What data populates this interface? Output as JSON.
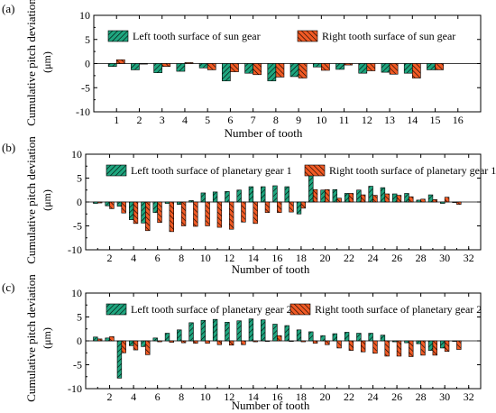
{
  "colors": {
    "left": "#1fa67f",
    "right": "#f15a24",
    "ink": "#000000"
  },
  "chart_data": [
    {
      "type": "bar",
      "panel_label": "(a)",
      "ylabel": "Cumulative pitch deviation",
      "yunit": "(μm)",
      "xlabel": "Number of tooth",
      "ylim": [
        -10,
        10
      ],
      "yticks": [
        10,
        5,
        0,
        -5,
        -10
      ],
      "xtick_labels": [
        "1",
        "2",
        "3",
        "4",
        "5",
        "6",
        "7",
        "8",
        "9",
        "10",
        "11",
        "12",
        "13",
        "14",
        "15",
        "16"
      ],
      "categories": [
        1,
        2,
        3,
        4,
        5,
        6,
        7,
        8,
        9,
        10,
        11,
        12,
        13,
        14,
        15
      ],
      "legend": "top",
      "series": [
        {
          "name": "Left tooth surface of sun gear",
          "values": [
            -0.6,
            -1.3,
            -1.9,
            -1.6,
            -0.9,
            -3.6,
            -2.0,
            -3.6,
            -2.7,
            -0.7,
            -1.2,
            -2.0,
            -1.8,
            -2.0,
            -1.3
          ]
        },
        {
          "name": "Right tooth surface of sun gear",
          "values": [
            0.8,
            0.0,
            -0.6,
            0.2,
            -1.3,
            -1.7,
            -2.3,
            -2.8,
            -3.0,
            -1.4,
            -0.3,
            -1.5,
            -2.2,
            -3.0,
            -1.3
          ]
        }
      ]
    },
    {
      "type": "bar",
      "panel_label": "(b)",
      "ylabel": "Cumulative pitch deviation",
      "yunit": "(μm)",
      "xlabel": "Number of tooth",
      "ylim": [
        -10,
        10
      ],
      "yticks": [
        10,
        5,
        0,
        -5,
        -10
      ],
      "xtick_labels": [
        "2",
        "4",
        "6",
        "8",
        "10",
        "12",
        "14",
        "16",
        "18",
        "20",
        "22",
        "24",
        "26",
        "28",
        "30",
        "32"
      ],
      "categories": [
        1,
        2,
        3,
        4,
        5,
        6,
        7,
        8,
        9,
        10,
        11,
        12,
        13,
        14,
        15,
        16,
        17,
        18,
        19,
        20,
        21,
        22,
        23,
        24,
        25,
        26,
        27,
        28,
        29,
        30,
        31
      ],
      "legend": "top",
      "series": [
        {
          "name": "Left tooth surface of planetary gear 1",
          "values": [
            -0.3,
            -0.8,
            -0.9,
            -3.7,
            -4.4,
            -2.2,
            -0.3,
            -0.5,
            0.3,
            1.9,
            2.1,
            2.2,
            2.5,
            3.2,
            3.2,
            3.4,
            3.2,
            -2.5,
            5.5,
            2.5,
            2.6,
            1.8,
            2.5,
            3.3,
            3.0,
            1.7,
            1.8,
            0.4,
            1.5,
            -0.3,
            0.0
          ]
        },
        {
          "name": "Right tooth surface of planetary gear 1",
          "values": [
            -0.2,
            -1.4,
            -2.3,
            -4.5,
            -6.0,
            -4.3,
            -6.2,
            -5.0,
            -5.1,
            -5.0,
            -5.3,
            -5.7,
            -4.2,
            -4.5,
            -2.2,
            -2.2,
            -2.1,
            -1.3,
            2.6,
            2.6,
            0.8,
            1.8,
            1.5,
            1.4,
            1.7,
            1.4,
            1.1,
            0.6,
            0.5,
            1.0,
            -0.5
          ]
        }
      ]
    },
    {
      "type": "bar",
      "panel_label": "(c)",
      "ylabel": "Cumulative pitch deviation",
      "yunit": "(μm)",
      "xlabel": "Number of tooth",
      "ylim": [
        -10,
        10
      ],
      "yticks": [
        10,
        5,
        0,
        -5,
        -10
      ],
      "xtick_labels": [
        "2",
        "4",
        "6",
        "8",
        "10",
        "12",
        "14",
        "16",
        "18",
        "20",
        "22",
        "24",
        "26",
        "28",
        "30",
        "32"
      ],
      "categories": [
        1,
        2,
        3,
        4,
        5,
        6,
        7,
        8,
        9,
        10,
        11,
        12,
        13,
        14,
        15,
        16,
        17,
        18,
        19,
        20,
        21,
        22,
        23,
        24,
        25,
        26,
        27,
        28,
        29,
        30,
        31
      ],
      "legend": "top",
      "series": [
        {
          "name": "Left tooth surface of planetary gear 2",
          "values": [
            0.8,
            0.6,
            -7.8,
            -1.0,
            -1.2,
            0.6,
            1.6,
            2.3,
            3.8,
            4.3,
            4.5,
            3.9,
            4.2,
            4.6,
            4.4,
            3.5,
            3.2,
            2.3,
            1.9,
            1.1,
            1.5,
            1.8,
            1.6,
            1.6,
            1.2,
            -0.2,
            -0.4,
            -0.6,
            -2.0,
            -1.5,
            0.0
          ]
        },
        {
          "name": "Right tooth surface of planetary gear 2",
          "values": [
            0.4,
            0.9,
            -2.5,
            -1.9,
            -2.9,
            -0.2,
            -0.3,
            -0.4,
            -0.5,
            -0.5,
            -0.8,
            -0.9,
            -0.8,
            -0.2,
            0.0,
            1.1,
            -0.1,
            -0.2,
            -0.5,
            -0.8,
            -1.5,
            -2.0,
            -2.3,
            -2.6,
            -3.2,
            -3.2,
            -3.3,
            -3.0,
            -3.0,
            -2.2,
            -1.8
          ]
        }
      ]
    }
  ]
}
